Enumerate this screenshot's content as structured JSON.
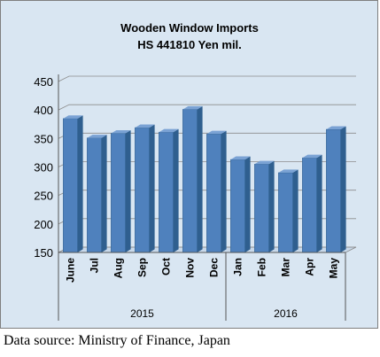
{
  "chart_data": {
    "type": "bar",
    "title": "Wooden Window Imports",
    "subtitle": "HS 441810 Yen mil.",
    "categories": [
      "June",
      "Jul",
      "Aug",
      "Sep",
      "Oct",
      "Nov",
      "Dec",
      "Jan",
      "Feb",
      "Mar",
      "Apr",
      "May"
    ],
    "groups": [
      {
        "label": "2015",
        "from": 0,
        "to": 6
      },
      {
        "label": "2016",
        "from": 7,
        "to": 11
      }
    ],
    "values": [
      385,
      351,
      359,
      369,
      361,
      401,
      358,
      313,
      305,
      290,
      316,
      366
    ],
    "ylim": [
      150,
      450
    ],
    "yticks": [
      150,
      200,
      250,
      300,
      350,
      400,
      450
    ],
    "grid": true,
    "bar_color": "#4f81bd"
  },
  "source": "Data source: Ministry of Finance, Japan"
}
